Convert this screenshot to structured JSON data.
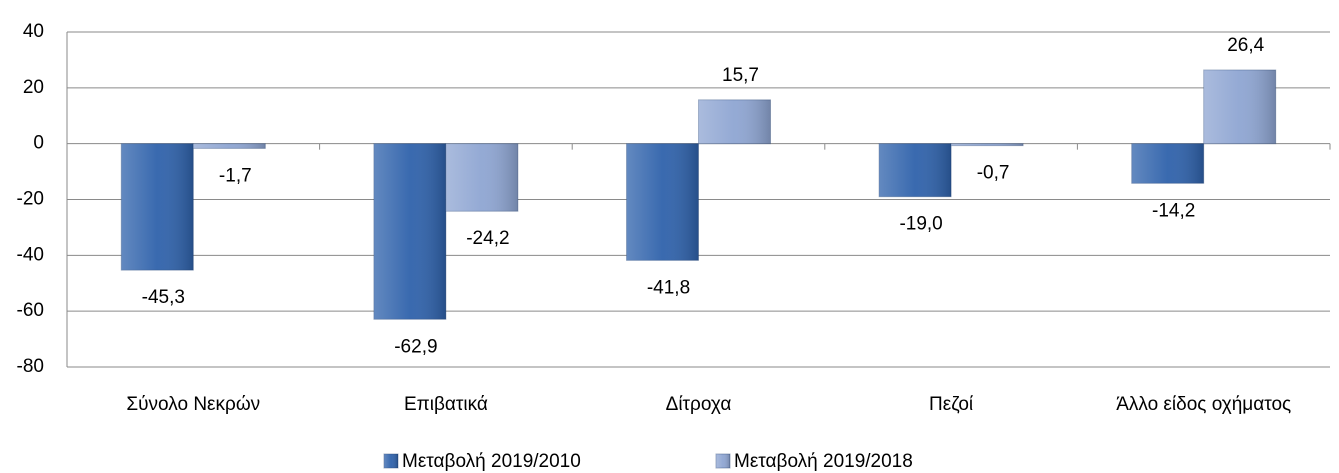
{
  "chart_data": {
    "type": "bar",
    "categories": [
      "Σύνολο Νεκρών",
      "Επιβατικά",
      "Δίτροχα",
      "Πεζοί",
      "Άλλο είδος οχήματος"
    ],
    "series": [
      {
        "name": "Μεταβολή 2019/2010",
        "color": "#2f62ab",
        "values": [
          -45.3,
          -62.9,
          -41.8,
          -19.0,
          -14.2
        ],
        "value_labels": [
          "-45,3",
          "-62,9",
          "-41,8",
          "-19,0",
          "-14,2"
        ]
      },
      {
        "name": "Μεταβολή 2019/2018",
        "color": "#8ea5d2",
        "values": [
          -1.7,
          -24.2,
          15.7,
          -0.7,
          26.4
        ],
        "value_labels": [
          "-1,7",
          "-24,2",
          "15,7",
          "-0,7",
          "26,4"
        ]
      }
    ],
    "ylim": [
      -80,
      40
    ],
    "yticks": [
      40,
      20,
      0,
      -20,
      -40,
      -60,
      -80
    ],
    "grid": true,
    "legend": "bottom"
  }
}
